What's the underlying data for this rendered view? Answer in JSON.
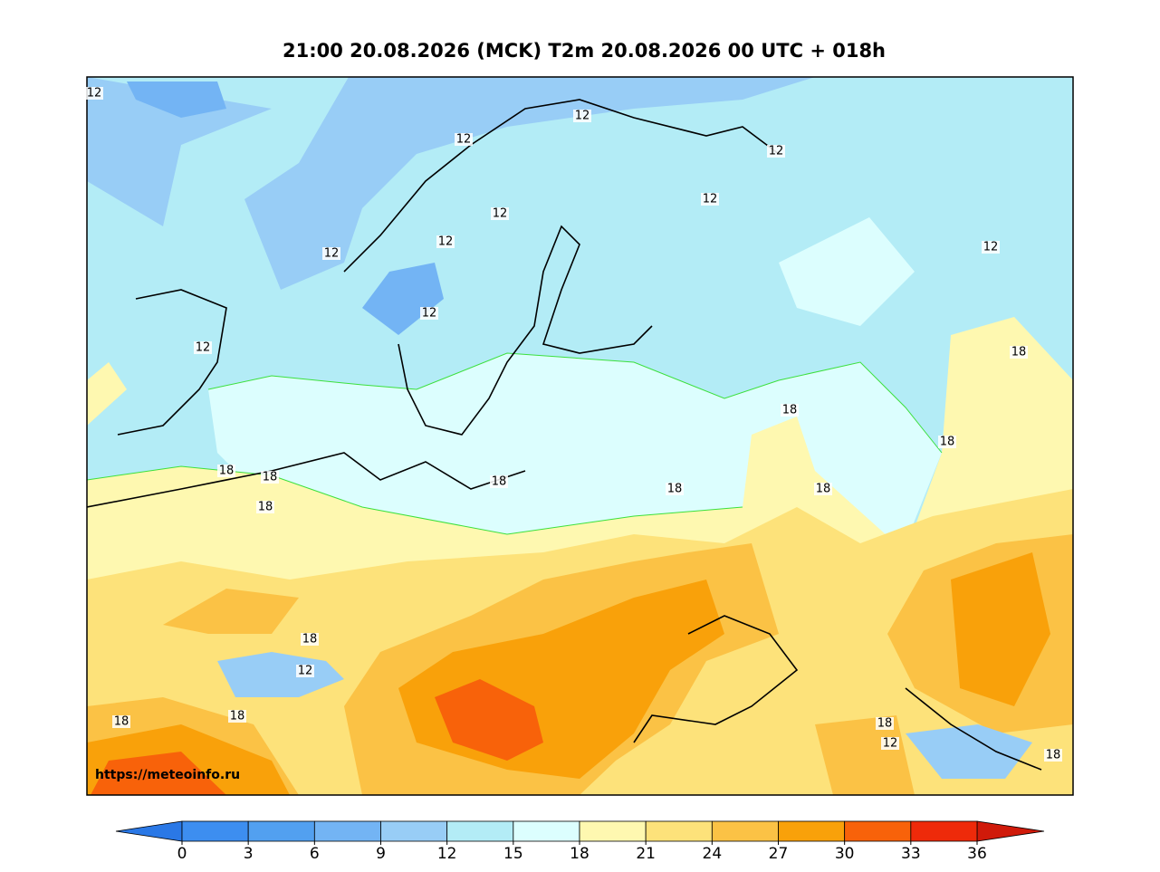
{
  "title": "21:00 20.08.2026 (MCK) T2m 20.08.2026 00 UTC + 018h",
  "source_url": "https://meteoinfo.ru",
  "contour_labels": [
    12,
    12,
    12,
    12,
    12,
    12,
    12,
    12,
    12,
    12,
    12,
    18,
    18,
    18,
    18,
    18,
    18,
    18,
    18,
    18,
    18,
    12,
    18,
    18,
    18,
    12,
    18
  ],
  "colorbar": {
    "ticks": [
      0,
      3,
      6,
      9,
      12,
      15,
      18,
      21,
      24,
      27,
      30,
      33,
      36
    ],
    "colors": [
      "#3d8ef0",
      "#52a0f0",
      "#73b4f4",
      "#98cdf6",
      "#b3ecf6",
      "#dcfefe",
      "#fef8b0",
      "#fde27a",
      "#fbc245",
      "#f9a10a",
      "#f8620a",
      "#ee2a0a"
    ],
    "under_color": "#2a78e6",
    "over_color": "#d01a0a"
  }
}
